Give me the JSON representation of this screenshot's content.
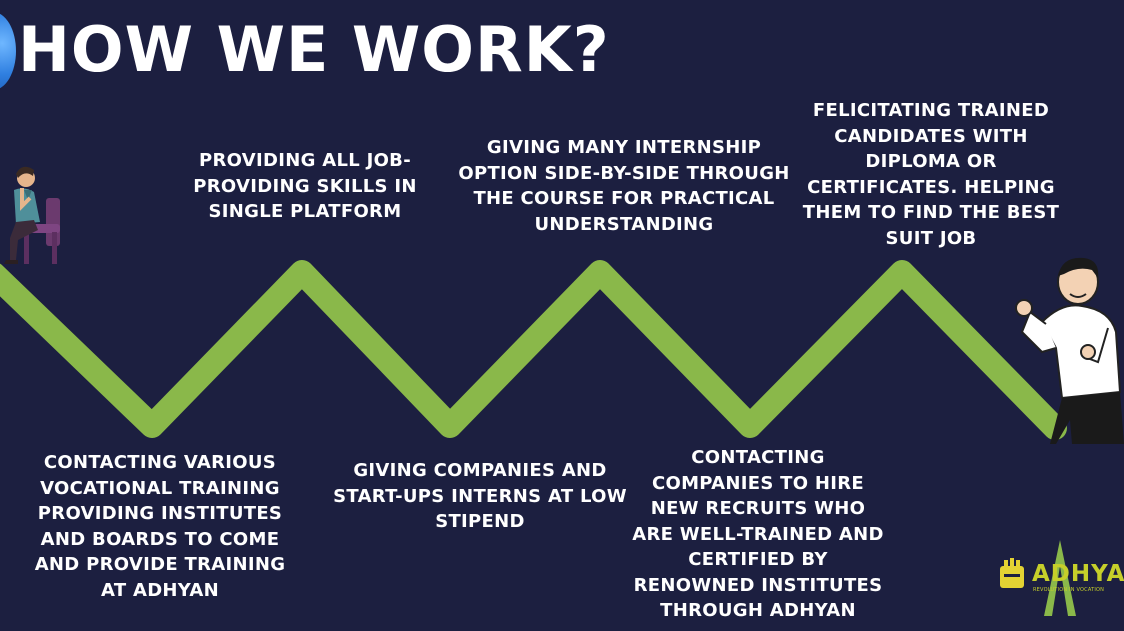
{
  "slide": {
    "title": "HOW WE WORK?",
    "steps": [
      {
        "text": "CONTACTING VARIOUS VOCATIONAL TRAINING PROVIDING INSTITUTES AND BOARDS TO COME AND PROVIDE TRAINING AT ADHYAN"
      },
      {
        "text": "PROVIDING ALL JOB-PROVIDING SKILLS IN SINGLE PLATFORM"
      },
      {
        "text": "GIVING COMPANIES AND START-UPS INTERNS AT LOW STIPEND"
      },
      {
        "text": "GIVING MANY INTERNSHIP OPTION SIDE-BY-SIDE THROUGH THE COURSE FOR PRACTICAL UNDERSTANDING"
      },
      {
        "text": "CONTACTING COMPANIES TO HIRE NEW RECRUITS WHO ARE WELL-TRAINED AND CERTIFIED BY RENOWNED INSTITUTES THROUGH ADHYAN"
      },
      {
        "text": "FELICITATING TRAINED CANDIDATES WITH DIPLOMA OR CERTIFICATES. HELPING THEM TO FIND THE BEST SUIT JOB"
      }
    ],
    "logo": {
      "name": "ADHYAN",
      "tagline": "REVOLUTION IN VOCATION"
    },
    "colors": {
      "background": "#1c1f40",
      "zigzag": "#8ab84a",
      "text": "#ffffff",
      "logo": "#c6cf2a"
    }
  }
}
